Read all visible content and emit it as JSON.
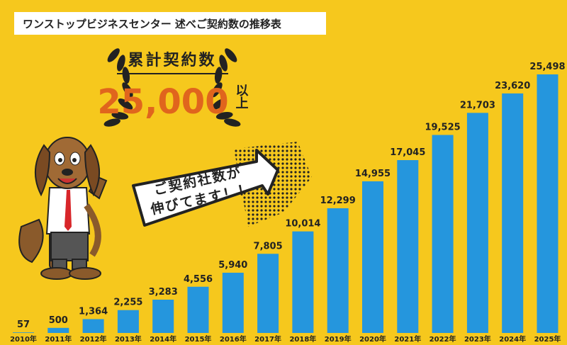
{
  "chart_data": {
    "type": "bar",
    "title": "ワンストップビジネスセンター 述べご契約数の推移表",
    "categories": [
      "2010年",
      "2011年",
      "2012年",
      "2013年",
      "2014年",
      "2015年",
      "2016年",
      "2017年",
      "2018年",
      "2019年",
      "2020年",
      "2021年",
      "2022年",
      "2023年",
      "2024年",
      "2025年"
    ],
    "values": [
      57,
      500,
      1364,
      2255,
      3283,
      4556,
      5940,
      7805,
      10014,
      12299,
      14955,
      17045,
      19525,
      21703,
      23620,
      25498
    ],
    "value_labels": [
      "57",
      "500",
      "1,364",
      "2,255",
      "3,283",
      "4,556",
      "5,940",
      "7,805",
      "10,014",
      "12,299",
      "14,955",
      "17,045",
      "19,525",
      "21,703",
      "23,620",
      "25,498"
    ],
    "color": "#2596dd"
  },
  "badge": {
    "label": "累計契約数",
    "value": "25,000",
    "suffix": "以上"
  },
  "callout": {
    "lines": [
      "ご契約社数が",
      "伸びてます！！"
    ]
  }
}
